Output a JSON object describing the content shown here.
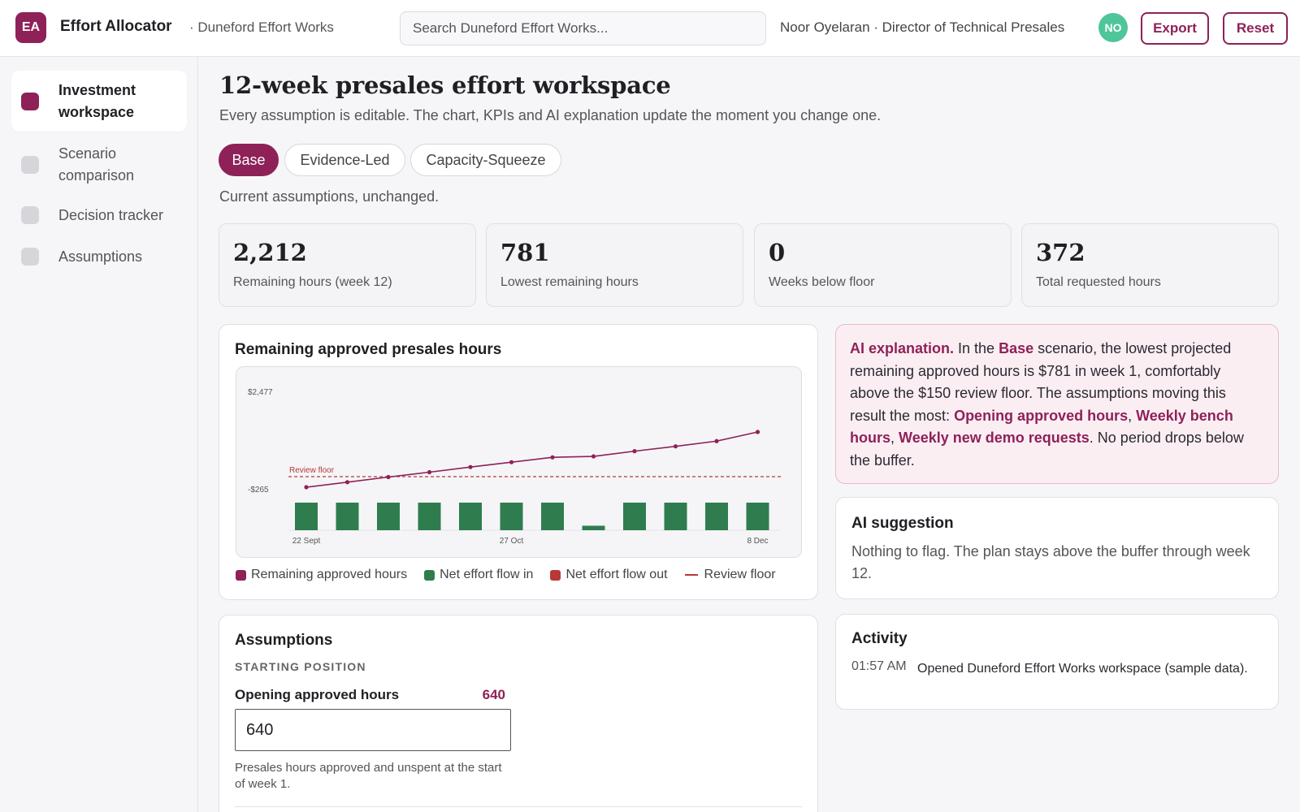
{
  "header": {
    "logo_initials": "EA",
    "app_title": "Effort Allocator",
    "org": "· Duneford Effort Works",
    "search_placeholder": "Search Duneford Effort Works...",
    "user": "Noor Oyelaran · Director of Technical Presales",
    "avatar_initials": "NO",
    "export_label": "Export",
    "reset_label": "Reset"
  },
  "sidebar": {
    "items": [
      {
        "label": "Investment workspace",
        "active": true
      },
      {
        "label": "Scenario comparison",
        "active": false
      },
      {
        "label": "Decision tracker",
        "active": false
      },
      {
        "label": "Assumptions",
        "active": false
      }
    ]
  },
  "main": {
    "title": "12-week presales effort workspace",
    "subtitle": "Every assumption is editable. The chart, KPIs and AI explanation update the moment you change one.",
    "tabs": [
      {
        "label": "Base",
        "active": true
      },
      {
        "label": "Evidence-Led",
        "active": false
      },
      {
        "label": "Capacity-Squeeze",
        "active": false
      }
    ],
    "scenario_note": "Current assumptions, unchanged.",
    "kpis": [
      {
        "value": "2,212",
        "label": "Remaining hours (week 12)"
      },
      {
        "value": "781",
        "label": "Lowest remaining hours"
      },
      {
        "value": "0",
        "label": "Weeks below floor"
      },
      {
        "value": "372",
        "label": "Total requested hours"
      }
    ]
  },
  "chart_card": {
    "title": "Remaining approved presales hours",
    "legend": [
      {
        "label": "Remaining approved hours",
        "color": "#8e2158",
        "kind": "square"
      },
      {
        "label": "Net effort flow in",
        "color": "#2f7d4f",
        "kind": "square"
      },
      {
        "label": "Net effort flow out",
        "color": "#b83838",
        "kind": "square"
      },
      {
        "label": "Review floor",
        "color": "#b83838",
        "kind": "line"
      }
    ]
  },
  "chart_data": {
    "type": "bar+line",
    "title": "Remaining approved presales hours",
    "y_tick_labels": [
      "$2,477",
      "-$265"
    ],
    "ylim": [
      -265,
      2477
    ],
    "x_tick_labels": [
      "22 Sept",
      "27 Oct",
      "8 Dec"
    ],
    "weeks": [
      1,
      2,
      3,
      4,
      5,
      6,
      7,
      8,
      9,
      10,
      11,
      12
    ],
    "x_tick_weeks": [
      1,
      6,
      12
    ],
    "series": [
      {
        "name": "Remaining approved hours",
        "type": "line",
        "color": "#8e2158",
        "values": [
          781,
          911,
          1044,
          1170,
          1303,
          1429,
          1555,
          1580,
          1715,
          1840,
          1975,
          2212
        ]
      },
      {
        "name": "Net effort flow in",
        "type": "bar",
        "color": "#2f7d4f",
        "values": [
          141,
          141,
          141,
          141,
          141,
          141,
          141,
          23,
          141,
          141,
          141,
          141
        ]
      },
      {
        "name": "Net effort flow out",
        "type": "bar",
        "color": "#b83838",
        "values": [
          0,
          0,
          0,
          0,
          0,
          0,
          0,
          0,
          0,
          0,
          0,
          0
        ]
      }
    ],
    "review_floor": {
      "label": "Review floor",
      "value": 150,
      "color": "#b83838"
    },
    "grid": false,
    "legend_position": "bottom"
  },
  "ai_explanation": {
    "lead": "AI explanation.",
    "t1": " In the ",
    "scenario": "Base",
    "t2": " scenario, the lowest projected remaining approved hours is $781 in week 1, comfortably above the $150 review floor. The assumptions moving this result the most: ",
    "d1": "Opening approved hours",
    "sep1": ", ",
    "d2": "Weekly bench hours",
    "sep2": ", ",
    "d3": "Weekly new demo requests",
    "t3": ". No period drops below the buffer."
  },
  "ai_suggestion": {
    "title": "AI suggestion",
    "text": "Nothing to flag. The plan stays above the buffer through week 12."
  },
  "activity": {
    "title": "Activity",
    "entries": [
      {
        "time": "01:57 AM",
        "text": "Opened Duneford Effort Works workspace (sample data)."
      }
    ]
  },
  "assumptions": {
    "title": "Assumptions",
    "section": "STARTING POSITION",
    "field_label": "Opening approved hours",
    "field_display": "640",
    "field_value": "640",
    "field_help": "Presales hours approved and unspent at the start of week 1."
  }
}
